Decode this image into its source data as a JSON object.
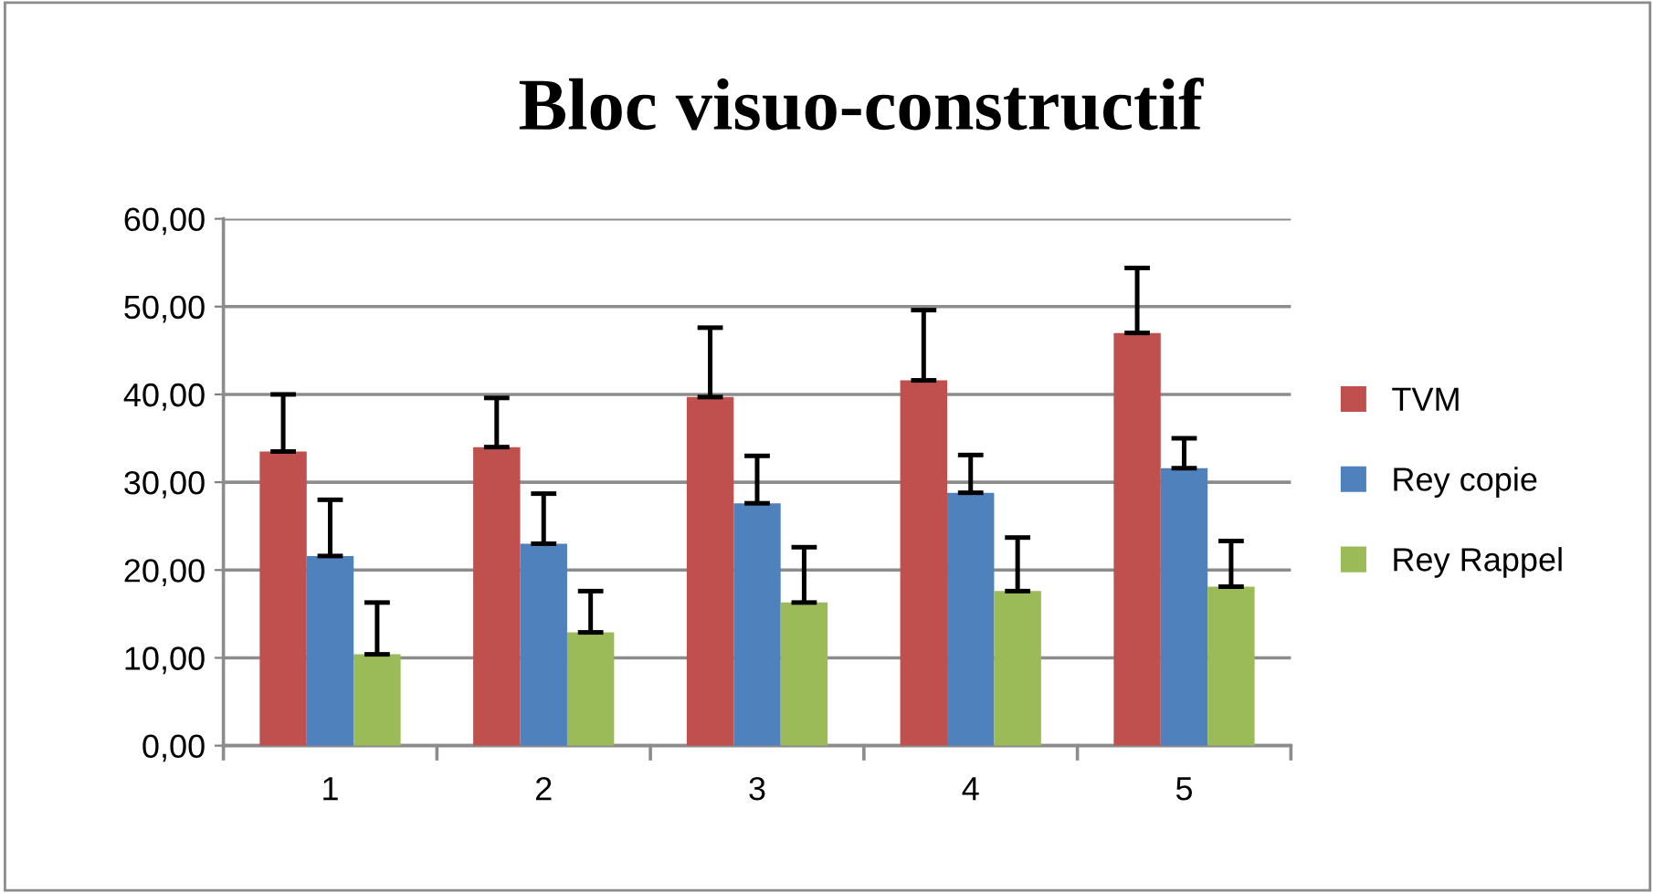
{
  "chart_data": {
    "type": "bar",
    "title": "Bloc visuo-constructif",
    "categories": [
      "1",
      "2",
      "3",
      "4",
      "5"
    ],
    "series": [
      {
        "name": "TVM",
        "color": "#c0504d",
        "values": [
          33.5,
          34.0,
          39.7,
          41.6,
          47.0
        ],
        "errors": [
          [
            33.5,
            40.0
          ],
          [
            34.0,
            39.6
          ],
          [
            39.7,
            47.6
          ],
          [
            41.6,
            49.6
          ],
          [
            47.0,
            54.4
          ]
        ]
      },
      {
        "name": "Rey copie",
        "color": "#4f81bd",
        "values": [
          21.6,
          23.0,
          27.6,
          28.8,
          31.6
        ],
        "errors": [
          [
            21.6,
            28.0
          ],
          [
            23.0,
            28.7
          ],
          [
            27.6,
            33.0
          ],
          [
            28.8,
            33.1
          ],
          [
            31.6,
            35.0
          ]
        ]
      },
      {
        "name": "Rey Rappel",
        "color": "#9bbb59",
        "values": [
          10.4,
          12.9,
          16.3,
          17.6,
          18.1
        ],
        "errors": [
          [
            10.4,
            16.3
          ],
          [
            12.9,
            17.6
          ],
          [
            16.3,
            22.6
          ],
          [
            17.6,
            23.7
          ],
          [
            18.1,
            23.3
          ]
        ]
      }
    ],
    "ylim": [
      0,
      60
    ],
    "yticks": [
      {
        "value": 0,
        "label": "0,00"
      },
      {
        "value": 10,
        "label": "10,00"
      },
      {
        "value": 20,
        "label": "20,00"
      },
      {
        "value": 30,
        "label": "30,00"
      },
      {
        "value": 40,
        "label": "40,00"
      },
      {
        "value": 50,
        "label": "50,00"
      },
      {
        "value": 60,
        "label": "60,00"
      }
    ],
    "grid": "y",
    "legend": "right"
  }
}
